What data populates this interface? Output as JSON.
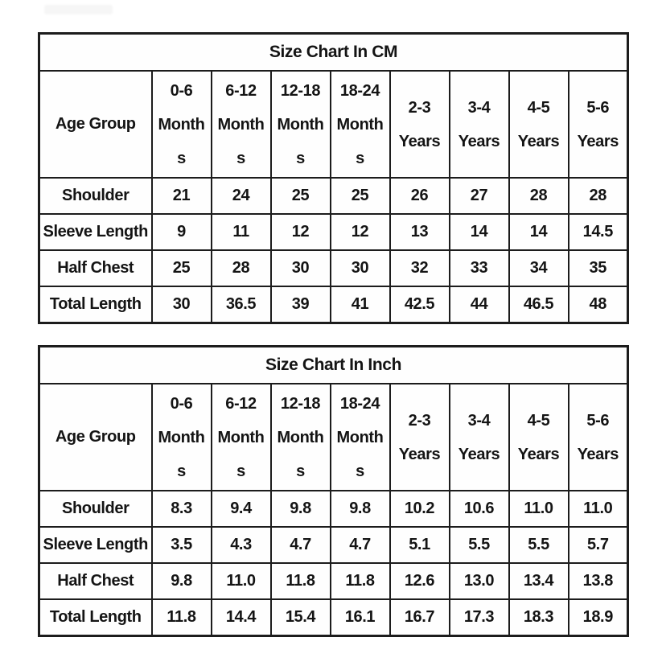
{
  "colors": {
    "border": "#1c1c1c",
    "text": "#141414",
    "background": "#ffffff"
  },
  "tables": [
    {
      "title": "Size Chart In CM",
      "corner_header": "Age Group",
      "column_headers": [
        [
          "0-6",
          "Month",
          "s"
        ],
        [
          "6-12",
          "Month",
          "s"
        ],
        [
          "12-18",
          "Month",
          "s"
        ],
        [
          "18-24",
          "Month",
          "s"
        ],
        [
          "2-3",
          "Years"
        ],
        [
          "3-4",
          "Years"
        ],
        [
          "4-5",
          "Years"
        ],
        [
          "5-6",
          "Years"
        ]
      ],
      "rows": [
        {
          "label": "Shoulder",
          "values": [
            "21",
            "24",
            "25",
            "25",
            "26",
            "27",
            "28",
            "28"
          ]
        },
        {
          "label": "Sleeve Length",
          "values": [
            "9",
            "11",
            "12",
            "12",
            "13",
            "14",
            "14",
            "14.5"
          ]
        },
        {
          "label": "Half Chest",
          "values": [
            "25",
            "28",
            "30",
            "30",
            "32",
            "33",
            "34",
            "35"
          ]
        },
        {
          "label": "Total Length",
          "values": [
            "30",
            "36.5",
            "39",
            "41",
            "42.5",
            "44",
            "46.5",
            "48"
          ]
        }
      ]
    },
    {
      "title": "Size Chart In Inch",
      "corner_header": "Age Group",
      "column_headers": [
        [
          "0-6",
          "Month",
          "s"
        ],
        [
          "6-12",
          "Month",
          "s"
        ],
        [
          "12-18",
          "Month",
          "s"
        ],
        [
          "18-24",
          "Month",
          "s"
        ],
        [
          "2-3",
          "Years"
        ],
        [
          "3-4",
          "Years"
        ],
        [
          "4-5",
          "Years"
        ],
        [
          "5-6",
          "Years"
        ]
      ],
      "rows": [
        {
          "label": "Shoulder",
          "values": [
            "8.3",
            "9.4",
            "9.8",
            "9.8",
            "10.2",
            "10.6",
            "11.0",
            "11.0"
          ]
        },
        {
          "label": "Sleeve Length",
          "values": [
            "3.5",
            "4.3",
            "4.7",
            "4.7",
            "5.1",
            "5.5",
            "5.5",
            "5.7"
          ]
        },
        {
          "label": "Half Chest",
          "values": [
            "9.8",
            "11.0",
            "11.8",
            "11.8",
            "12.6",
            "13.0",
            "13.4",
            "13.8"
          ]
        },
        {
          "label": "Total Length",
          "values": [
            "11.8",
            "14.4",
            "15.4",
            "16.1",
            "16.7",
            "17.3",
            "18.3",
            "18.9"
          ]
        }
      ]
    }
  ]
}
